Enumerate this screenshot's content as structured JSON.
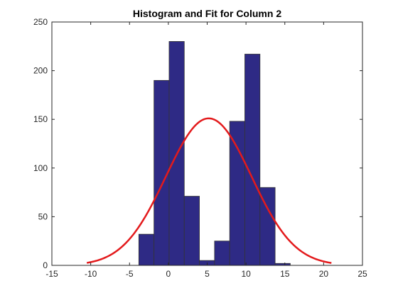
{
  "chart_data": {
    "type": "bar",
    "title": "Histogram and Fit for Column 2",
    "xlabel": "",
    "ylabel": "",
    "xlim": [
      -15,
      25
    ],
    "ylim": [
      0,
      250
    ],
    "xticks": [
      -15,
      -10,
      -5,
      0,
      5,
      10,
      15,
      20,
      25
    ],
    "yticks": [
      0,
      50,
      100,
      150,
      200,
      250
    ],
    "grid": false,
    "bin_edges": [
      -3.8,
      -1.85,
      0.1,
      2.05,
      4.0,
      5.95,
      7.9,
      9.85,
      11.8,
      13.75,
      15.7
    ],
    "values": [
      32,
      190,
      230,
      71,
      5,
      25,
      148,
      217,
      80,
      2
    ],
    "bar_color": "#2e2a85",
    "bar_edge_color": "#333333",
    "fit": {
      "type": "normal",
      "mean": 5.2,
      "std": 5.5,
      "peak": 151,
      "x_range": [
        -10.5,
        21
      ],
      "color": "#e31a1c"
    }
  }
}
